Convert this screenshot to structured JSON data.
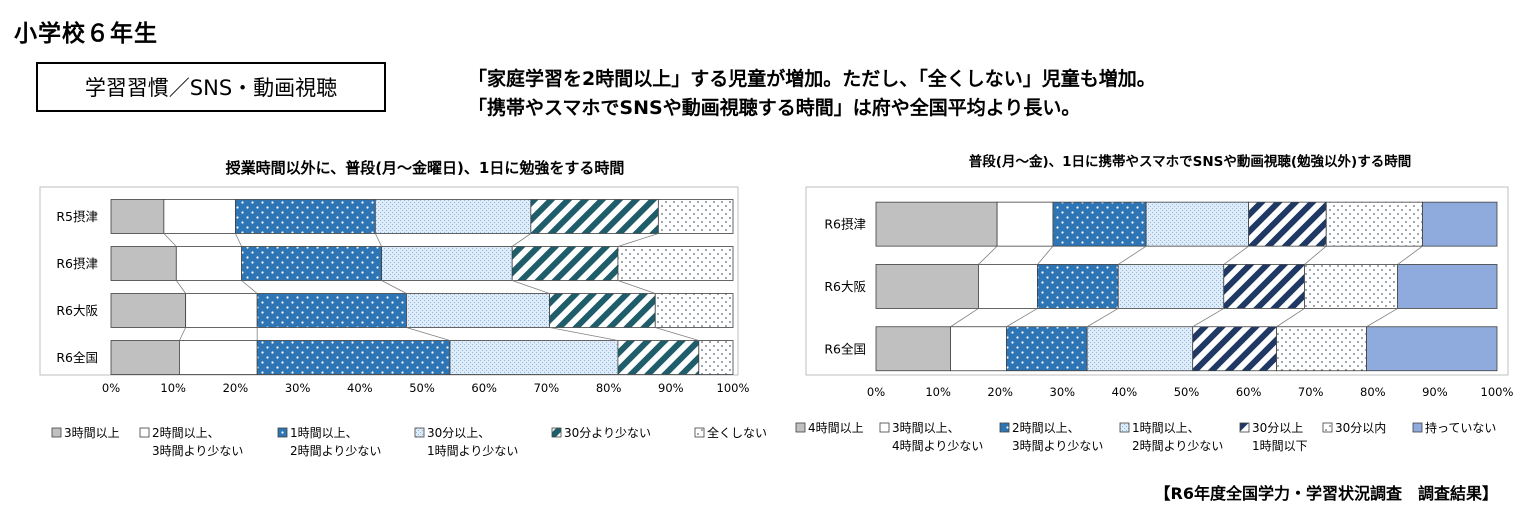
{
  "page_title": "小学校６年生",
  "topic_box": "学習習慣／SNS・動画視聴",
  "headline": {
    "line1": "「家庭学習を2時間以上」する児童が増加。ただし、「全くしない」児童も増加。",
    "line2": "「携帯やスマホでSNSや動画視聴する時間」は府や全国平均より長い。"
  },
  "source": "【R6年度全国学力・学習状況調査　調査結果】",
  "chart_data": [
    {
      "type": "bar",
      "stacked": true,
      "orientation": "horizontal",
      "normalized": true,
      "title": "授業時間以外に、普段(月～金曜日)、1日に勉強をする時間",
      "categories": [
        "R5摂津",
        "R6摂津",
        "R6大阪",
        "R6全国"
      ],
      "xlim": [
        0,
        100
      ],
      "x_ticks": [
        "0%",
        "10%",
        "20%",
        "30%",
        "40%",
        "50%",
        "60%",
        "70%",
        "80%",
        "90%",
        "100%"
      ],
      "series": [
        {
          "name": "3時間以上",
          "values": [
            8.5,
            10.5,
            12,
            11
          ],
          "color": "#c0c0c0",
          "pattern": "solid"
        },
        {
          "name": "2時間以上、3時間より少ない",
          "values": [
            11.5,
            10.5,
            11.5,
            12.5
          ],
          "color": "#ffffff",
          "pattern": "solid"
        },
        {
          "name": "1時間以上、2時間より少ない",
          "values": [
            22.5,
            22.5,
            24,
            31
          ],
          "color": "#2e75b6",
          "pattern": "dots"
        },
        {
          "name": "30分以上、1時間より少ない",
          "values": [
            25,
            21,
            23,
            27
          ],
          "color": "#dbeaf7",
          "pattern": "fine"
        },
        {
          "name": "30分より少ない",
          "values": [
            20.5,
            17,
            17,
            13
          ],
          "color": "#1f5d6b",
          "pattern": "diagonal"
        },
        {
          "name": "全くしない",
          "values": [
            12,
            18.5,
            12.5,
            5.5
          ],
          "color": "#ffffff",
          "pattern": "dots-light"
        }
      ],
      "legend_lines": [
        [
          "3時間以上"
        ],
        [
          "2時間以上、",
          "3時間より少ない"
        ],
        [
          "1時間以上、",
          "2時間より少ない"
        ],
        [
          "30分以上、",
          "1時間より少ない"
        ],
        [
          "30分より少ない"
        ],
        [
          "全くしない"
        ]
      ],
      "legend_position": "bottom",
      "grid": false
    },
    {
      "type": "bar",
      "stacked": true,
      "orientation": "horizontal",
      "normalized": true,
      "title": "普段(月～金)、1日に携帯やスマホでSNSや動画視聴(勉強以外)する時間",
      "categories": [
        "R6摂津",
        "R6大阪",
        "R6全国"
      ],
      "xlim": [
        0,
        100
      ],
      "x_ticks": [
        "0%",
        "10%",
        "20%",
        "30%",
        "40%",
        "50%",
        "60%",
        "70%",
        "80%",
        "90%",
        "100%"
      ],
      "series": [
        {
          "name": "4時間以上",
          "values": [
            19.5,
            16.5,
            12
          ],
          "color": "#c0c0c0",
          "pattern": "solid"
        },
        {
          "name": "3時間以上、4時間より少ない",
          "values": [
            9,
            9.5,
            9
          ],
          "color": "#ffffff",
          "pattern": "solid"
        },
        {
          "name": "2時間以上、3時間より少ない",
          "values": [
            15,
            13,
            13
          ],
          "color": "#2e75b6",
          "pattern": "dots"
        },
        {
          "name": "1時間以上、2時間より少ない",
          "values": [
            16.5,
            17,
            17
          ],
          "color": "#dbeaf7",
          "pattern": "fine"
        },
        {
          "name": "30分以上1時間以下",
          "values": [
            12.5,
            13,
            13.5
          ],
          "color": "#1f3864",
          "pattern": "diagonal"
        },
        {
          "name": "30分以内",
          "values": [
            15.5,
            15,
            14.5
          ],
          "color": "#ffffff",
          "pattern": "dots-light"
        },
        {
          "name": "持っていない",
          "values": [
            12,
            16,
            21
          ],
          "color": "#8faadc",
          "pattern": "solid"
        }
      ],
      "legend_lines": [
        [
          "4時間以上"
        ],
        [
          "3時間以上、",
          "4時間より少ない"
        ],
        [
          "2時間以上、",
          "3時間より少ない"
        ],
        [
          "1時間以上、",
          "2時間より少ない"
        ],
        [
          "30分以上",
          "1時間以下"
        ],
        [
          "30分以内"
        ],
        [
          "持っていない"
        ]
      ],
      "legend_position": "bottom",
      "grid": false
    }
  ]
}
